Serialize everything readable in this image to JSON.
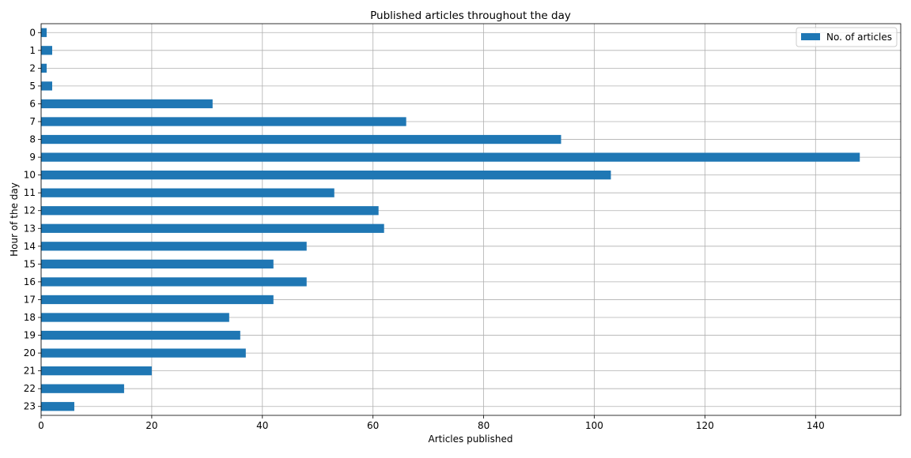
{
  "chart_data": {
    "type": "bar",
    "orientation": "horizontal",
    "title": "Published articles throughout the day",
    "xlabel": "Articles published",
    "ylabel": "Hour of the day",
    "categories": [
      "0",
      "1",
      "2",
      "5",
      "6",
      "7",
      "8",
      "9",
      "10",
      "11",
      "12",
      "13",
      "14",
      "15",
      "16",
      "17",
      "18",
      "19",
      "20",
      "21",
      "22",
      "23"
    ],
    "series": [
      {
        "name": "No. of articles",
        "color": "#1f77b4",
        "values": [
          1,
          2,
          1,
          2,
          31,
          66,
          94,
          148,
          103,
          53,
          61,
          62,
          48,
          42,
          48,
          42,
          34,
          36,
          37,
          20,
          15,
          6
        ]
      }
    ],
    "xlim": [
      0,
      155.4
    ],
    "xticks": [
      0,
      20,
      40,
      60,
      80,
      100,
      120,
      140
    ],
    "grid": true,
    "legend_position": "top-right",
    "y_inverted": true
  }
}
